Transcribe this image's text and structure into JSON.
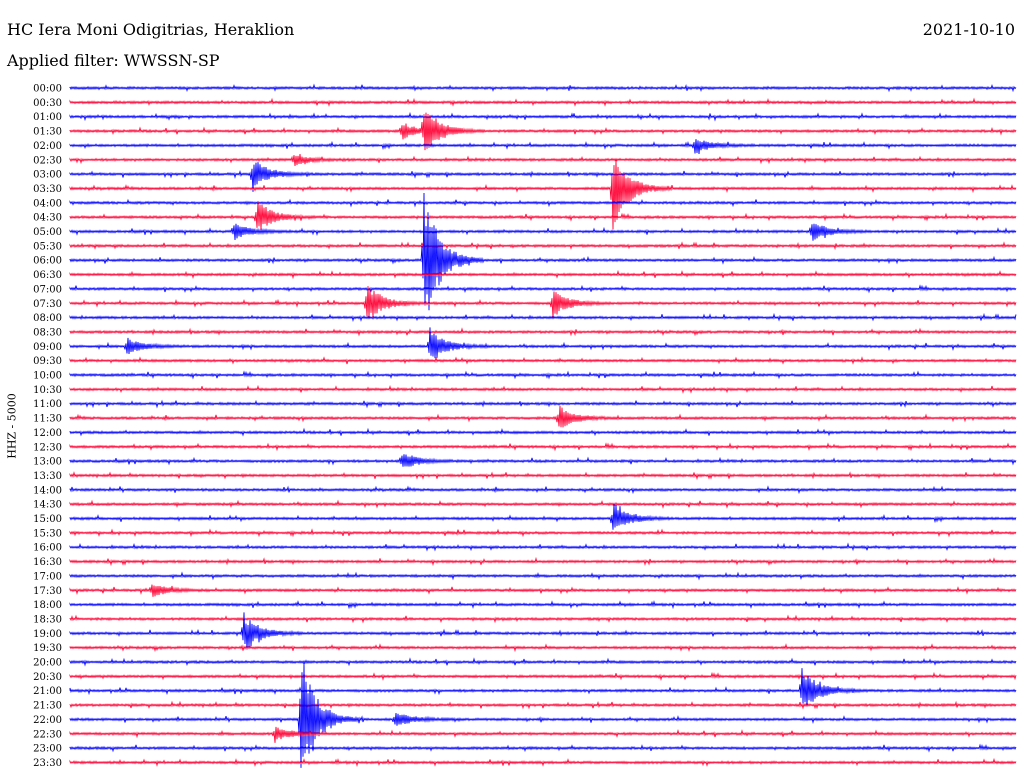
{
  "header": {
    "station": "HC Iera Moni Odigitrias, Heraklion",
    "date": "2021-10-10",
    "filter": "Applied filter: WWSSN-SP"
  },
  "chart_data": {
    "type": "line",
    "title": "HC Iera Moni Odigitrias, Heraklion",
    "subtitle": "Applied filter: WWSSN-SP",
    "ylabel": "HHZ - 5000",
    "colors": {
      "blue": "#0000ff",
      "red": "#ff0033"
    },
    "rows": [
      "00:00",
      "00:30",
      "01:00",
      "01:30",
      "02:00",
      "02:30",
      "03:00",
      "03:30",
      "04:00",
      "04:30",
      "05:00",
      "05:30",
      "06:00",
      "06:30",
      "07:00",
      "07:30",
      "08:00",
      "08:30",
      "09:00",
      "09:30",
      "10:00",
      "10:30",
      "11:00",
      "11:30",
      "12:00",
      "12:30",
      "13:00",
      "13:30",
      "14:00",
      "14:30",
      "15:00",
      "15:30",
      "16:00",
      "16:30",
      "17:00",
      "17:30",
      "18:00",
      "18:30",
      "19:00",
      "19:30",
      "20:00",
      "20:30",
      "21:00",
      "21:30",
      "22:00",
      "22:30",
      "23:00",
      "23:30"
    ],
    "row_colors": [
      "blue",
      "red"
    ],
    "events": [
      {
        "row": "03:00",
        "minute": 5.8,
        "amp": 2.2
      },
      {
        "row": "04:30",
        "minute": 5.9,
        "amp": 2.6
      },
      {
        "row": "05:00",
        "minute": 5.2,
        "amp": 1.2
      },
      {
        "row": "01:30",
        "minute": 10.5,
        "amp": 1.3
      },
      {
        "row": "06:00",
        "minute": 11.2,
        "amp": 11.0
      },
      {
        "row": "01:30",
        "minute": 11.2,
        "amp": 4.0
      },
      {
        "row": "09:00",
        "minute": 11.4,
        "amp": 2.6
      },
      {
        "row": "07:30",
        "minute": 9.4,
        "amp": 3.0
      },
      {
        "row": "07:30",
        "minute": 15.3,
        "amp": 2.0
      },
      {
        "row": "03:30",
        "minute": 17.2,
        "amp": 6.5
      },
      {
        "row": "02:00",
        "minute": 19.8,
        "amp": 1.2
      },
      {
        "row": "05:00",
        "minute": 23.5,
        "amp": 1.6
      },
      {
        "row": "11:30",
        "minute": 15.5,
        "amp": 1.8
      },
      {
        "row": "13:00",
        "minute": 10.5,
        "amp": 1.4
      },
      {
        "row": "15:00",
        "minute": 17.2,
        "amp": 2.5
      },
      {
        "row": "17:30",
        "minute": 2.6,
        "amp": 0.9
      },
      {
        "row": "19:00",
        "minute": 5.5,
        "amp": 2.9
      },
      {
        "row": "22:00",
        "minute": 7.3,
        "amp": 10.0
      },
      {
        "row": "22:00",
        "minute": 10.3,
        "amp": 1.2
      },
      {
        "row": "21:00",
        "minute": 23.2,
        "amp": 3.5
      },
      {
        "row": "22:30",
        "minute": 6.5,
        "amp": 1.0
      },
      {
        "row": "09:00",
        "minute": 1.8,
        "amp": 1.2
      },
      {
        "row": "02:30",
        "minute": 7.1,
        "amp": 0.8
      }
    ]
  }
}
